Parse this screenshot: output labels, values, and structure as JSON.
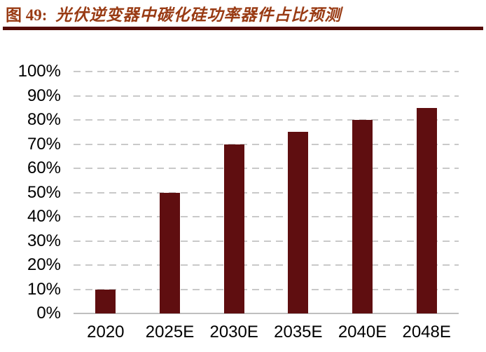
{
  "figure": {
    "label": "图 49:",
    "title": "光伏逆变器中碳化硅功率器件占比预测"
  },
  "chart_data": {
    "type": "bar",
    "title": "光伏逆变器中碳化硅功率器件占比预测",
    "categories": [
      "2020",
      "2025E",
      "2030E",
      "2035E",
      "2040E",
      "2048E"
    ],
    "values": [
      10,
      50,
      70,
      75,
      80,
      85
    ],
    "unit": "%",
    "xlabel": "",
    "ylabel": "",
    "ylim": [
      0,
      100
    ],
    "ytick_step": 10,
    "ytick_labels": [
      "0%",
      "10%",
      "20%",
      "30%",
      "40%",
      "50%",
      "60%",
      "70%",
      "80%",
      "90%",
      "100%"
    ],
    "grid": "dashed-horizontal",
    "legend": "none",
    "colors": {
      "bar": "#5F0E10",
      "gridline": "#C9C9C9",
      "axis_line": "#BFBFBF",
      "tick_label": "#000000",
      "title_text": "#993B14",
      "title_rule": "#540B07",
      "background": "#FFFFFF"
    }
  }
}
